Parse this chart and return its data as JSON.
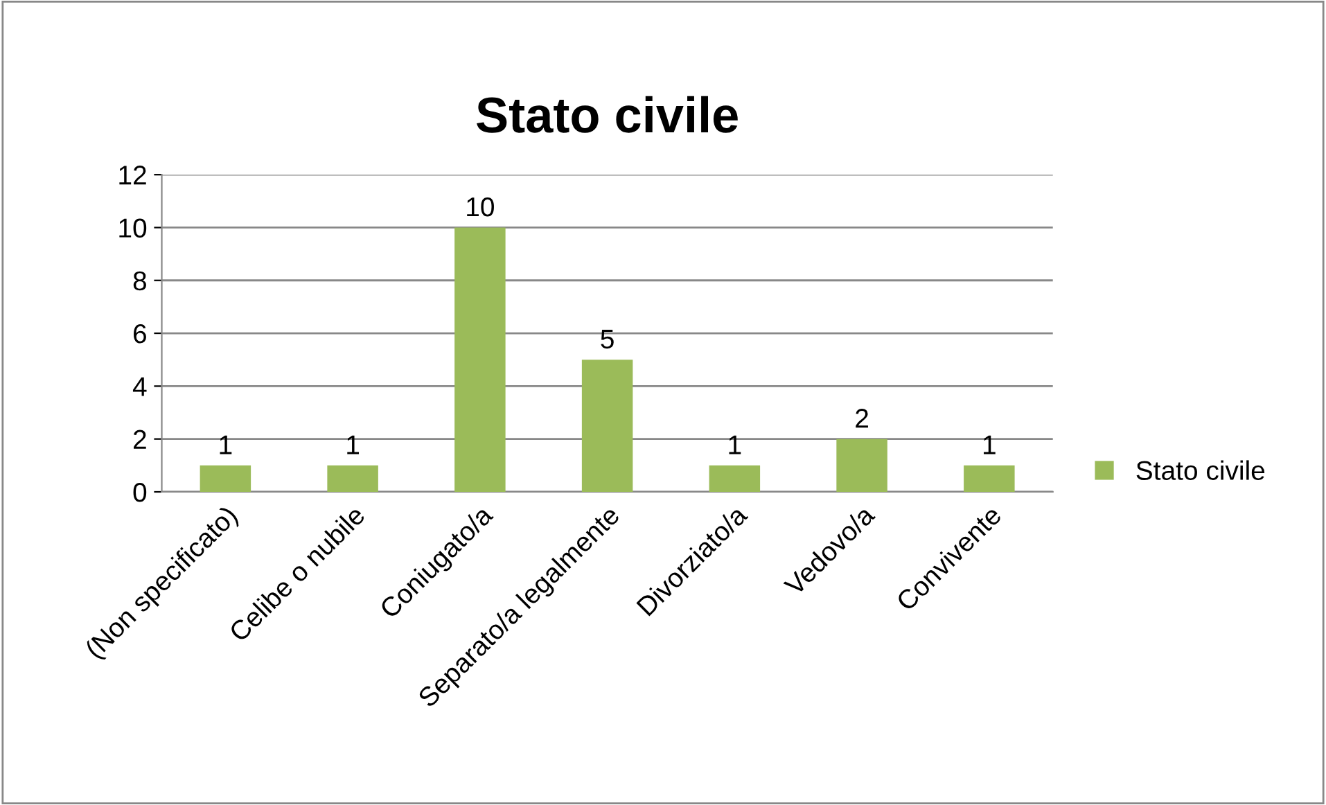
{
  "chart_data": {
    "type": "bar",
    "title": "Stato civile",
    "categories": [
      "(Non specificato)",
      "Celibe o nubile",
      "Coniugato/a",
      "Separato/a legalmente",
      "Divorziato/a",
      "Vedovo/a",
      "Convivente"
    ],
    "series": [
      {
        "name": "Stato civile",
        "color": "#9bbb59",
        "values": [
          1,
          1,
          10,
          5,
          1,
          2,
          1
        ]
      }
    ],
    "ylim": [
      0,
      12
    ],
    "yticks": [
      0,
      2,
      4,
      6,
      8,
      10,
      12
    ],
    "grid": "y",
    "legend": "right",
    "data_labels": true
  }
}
